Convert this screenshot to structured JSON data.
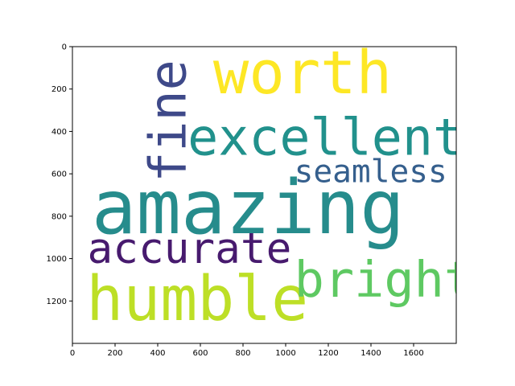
{
  "chart_data": {
    "type": "wordcloud",
    "title": "",
    "xlabel": "",
    "ylabel": "",
    "xlim": [
      0,
      1800
    ],
    "ylim": [
      1400,
      0
    ],
    "x_ticks": [
      0,
      200,
      400,
      600,
      800,
      1000,
      1200,
      1400,
      1600
    ],
    "y_ticks": [
      0,
      200,
      400,
      600,
      800,
      1000,
      1200
    ],
    "x_tick_labels": [
      "0",
      "200",
      "400",
      "600",
      "800",
      "1000",
      "1200",
      "1400",
      "1600"
    ],
    "y_tick_labels": [
      "0",
      "200",
      "400",
      "600",
      "800",
      "1000",
      "1200"
    ],
    "grid": false,
    "words": [
      {
        "text": "amazing",
        "x": 90,
        "y": 880,
        "size": 350,
        "rotate": 0,
        "color": "#268c8c"
      },
      {
        "text": "humble",
        "x": 65,
        "y": 1290,
        "size": 290,
        "rotate": 0,
        "color": "#bddf26"
      },
      {
        "text": "worth",
        "x": 660,
        "y": 220,
        "size": 280,
        "rotate": 0,
        "color": "#fde725"
      },
      {
        "text": "excellent",
        "x": 540,
        "y": 510,
        "size": 240,
        "rotate": 0,
        "color": "#21918c"
      },
      {
        "text": "fine",
        "x": 530,
        "y": 640,
        "size": 240,
        "rotate": -90,
        "color": "#3e4989"
      },
      {
        "text": "bright",
        "x": 1040,
        "y": 1180,
        "size": 235,
        "rotate": 0,
        "color": "#5ec962"
      },
      {
        "text": "accurate",
        "x": 70,
        "y": 1020,
        "size": 200,
        "rotate": 0,
        "color": "#471a6e"
      },
      {
        "text": "seamless",
        "x": 1040,
        "y": 640,
        "size": 150,
        "rotate": 0,
        "color": "#355f8d"
      }
    ]
  }
}
